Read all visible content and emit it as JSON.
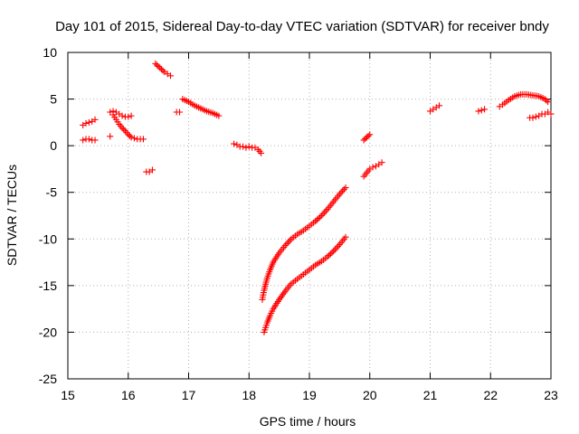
{
  "chart_data": {
    "type": "scatter",
    "title": "Day 101 of 2015, Sidereal Day-to-day VTEC variation (SDTVAR) for receiver bndy",
    "xlabel": "GPS time / hours",
    "ylabel": "SDTVAR / TECUs",
    "xlim": [
      15,
      23
    ],
    "ylim": [
      -25,
      10
    ],
    "xticks": [
      "15",
      "16",
      "17",
      "18",
      "19",
      "20",
      "21",
      "22",
      "23"
    ],
    "yticks": [
      "10",
      "5",
      "0",
      "-5",
      "-10",
      "-15",
      "-20",
      "-25"
    ],
    "grid": true,
    "marker": "+",
    "color": "#ff0000",
    "segments": [
      {
        "name": "s01",
        "x": [
          15.25,
          15.3,
          15.35,
          15.4,
          15.45
        ],
        "y": [
          2.2,
          2.4,
          2.5,
          2.6,
          2.8
        ]
      },
      {
        "name": "s02",
        "x": [
          15.25,
          15.3,
          15.35,
          15.4,
          15.45
        ],
        "y": [
          0.6,
          0.7,
          0.7,
          0.6,
          0.6
        ]
      },
      {
        "name": "s03",
        "x": [
          15.7
        ],
        "y": [
          1.0
        ]
      },
      {
        "name": "s04",
        "x": [
          15.7,
          15.75,
          15.8,
          15.85,
          15.9,
          15.95,
          16.0,
          16.05
        ],
        "y": [
          3.6,
          3.7,
          3.6,
          3.4,
          3.2,
          3.1,
          3.1,
          3.2
        ]
      },
      {
        "name": "s05",
        "x": [
          15.75,
          15.8,
          15.85,
          15.9,
          15.95,
          16.0,
          16.05,
          16.1,
          16.15,
          16.2,
          16.25
        ],
        "y": [
          3.3,
          2.8,
          2.3,
          1.9,
          1.6,
          1.2,
          0.9,
          0.8,
          0.7,
          0.7,
          0.7
        ]
      },
      {
        "name": "s06",
        "x": [
          16.3,
          16.35,
          16.4
        ],
        "y": [
          -2.8,
          -2.8,
          -2.6
        ]
      },
      {
        "name": "s07",
        "x": [
          16.45,
          16.5,
          16.55,
          16.6,
          16.65,
          16.7
        ],
        "y": [
          8.8,
          8.5,
          8.2,
          7.9,
          7.7,
          7.5
        ]
      },
      {
        "name": "s08",
        "x": [
          16.8,
          16.85
        ],
        "y": [
          3.6,
          3.6
        ]
      },
      {
        "name": "s09",
        "x": [
          16.9,
          17.0,
          17.1,
          17.2,
          17.3,
          17.4,
          17.5
        ],
        "y": [
          5.0,
          4.7,
          4.3,
          4.0,
          3.7,
          3.5,
          3.2
        ]
      },
      {
        "name": "s10",
        "x": [
          17.75,
          17.8,
          17.85,
          17.9,
          17.95,
          18.0,
          18.05,
          18.1,
          18.15,
          18.2
        ],
        "y": [
          0.2,
          0.1,
          -0.1,
          -0.1,
          -0.2,
          -0.1,
          -0.2,
          -0.2,
          -0.4,
          -0.8
        ]
      },
      {
        "name": "s11",
        "x": [
          18.22,
          18.25,
          18.3,
          18.35,
          18.4,
          18.5,
          18.6,
          18.7,
          18.8,
          18.9,
          19.0,
          19.1,
          19.2,
          19.3,
          19.4,
          19.5,
          19.6
        ],
        "y": [
          -16.5,
          -15.5,
          -14.2,
          -13.3,
          -12.5,
          -11.5,
          -10.7,
          -10.0,
          -9.5,
          -9.1,
          -8.6,
          -8.1,
          -7.5,
          -6.8,
          -6.0,
          -5.2,
          -4.5
        ]
      },
      {
        "name": "s12",
        "x": [
          18.25,
          18.3,
          18.35,
          18.4,
          18.5,
          18.6,
          18.7,
          18.8,
          18.9,
          19.0,
          19.1,
          19.2,
          19.3,
          19.4,
          19.5,
          19.6
        ],
        "y": [
          -20.0,
          -19.0,
          -18.2,
          -17.5,
          -16.5,
          -15.6,
          -14.8,
          -14.3,
          -13.8,
          -13.3,
          -12.8,
          -12.4,
          -11.9,
          -11.3,
          -10.6,
          -9.8
        ]
      },
      {
        "name": "s13",
        "x": [
          19.9,
          19.95,
          20.0
        ],
        "y": [
          0.6,
          0.9,
          1.2
        ]
      },
      {
        "name": "s14",
        "x": [
          19.9,
          19.95,
          20.0,
          20.05,
          20.1,
          20.15,
          20.2
        ],
        "y": [
          -3.3,
          -2.9,
          -2.5,
          -2.3,
          -2.2,
          -2.0,
          -1.8
        ]
      },
      {
        "name": "s15",
        "x": [
          21.0,
          21.05,
          21.1,
          21.15
        ],
        "y": [
          3.7,
          3.9,
          4.1,
          4.3
        ]
      },
      {
        "name": "s16",
        "x": [
          21.8,
          21.85,
          21.9
        ],
        "y": [
          3.7,
          3.8,
          3.9
        ]
      },
      {
        "name": "s17",
        "x": [
          22.15,
          22.2,
          22.3,
          22.4,
          22.5,
          22.6,
          22.7,
          22.8,
          22.9,
          22.95
        ],
        "y": [
          4.2,
          4.4,
          4.9,
          5.3,
          5.5,
          5.5,
          5.4,
          5.3,
          5.0,
          4.7
        ]
      },
      {
        "name": "s18",
        "x": [
          22.65,
          22.7,
          22.75,
          22.8,
          22.85,
          22.9,
          22.95,
          23.0
        ],
        "y": [
          3.0,
          3.0,
          3.1,
          3.2,
          3.4,
          3.4,
          3.6,
          3.4
        ]
      }
    ]
  }
}
